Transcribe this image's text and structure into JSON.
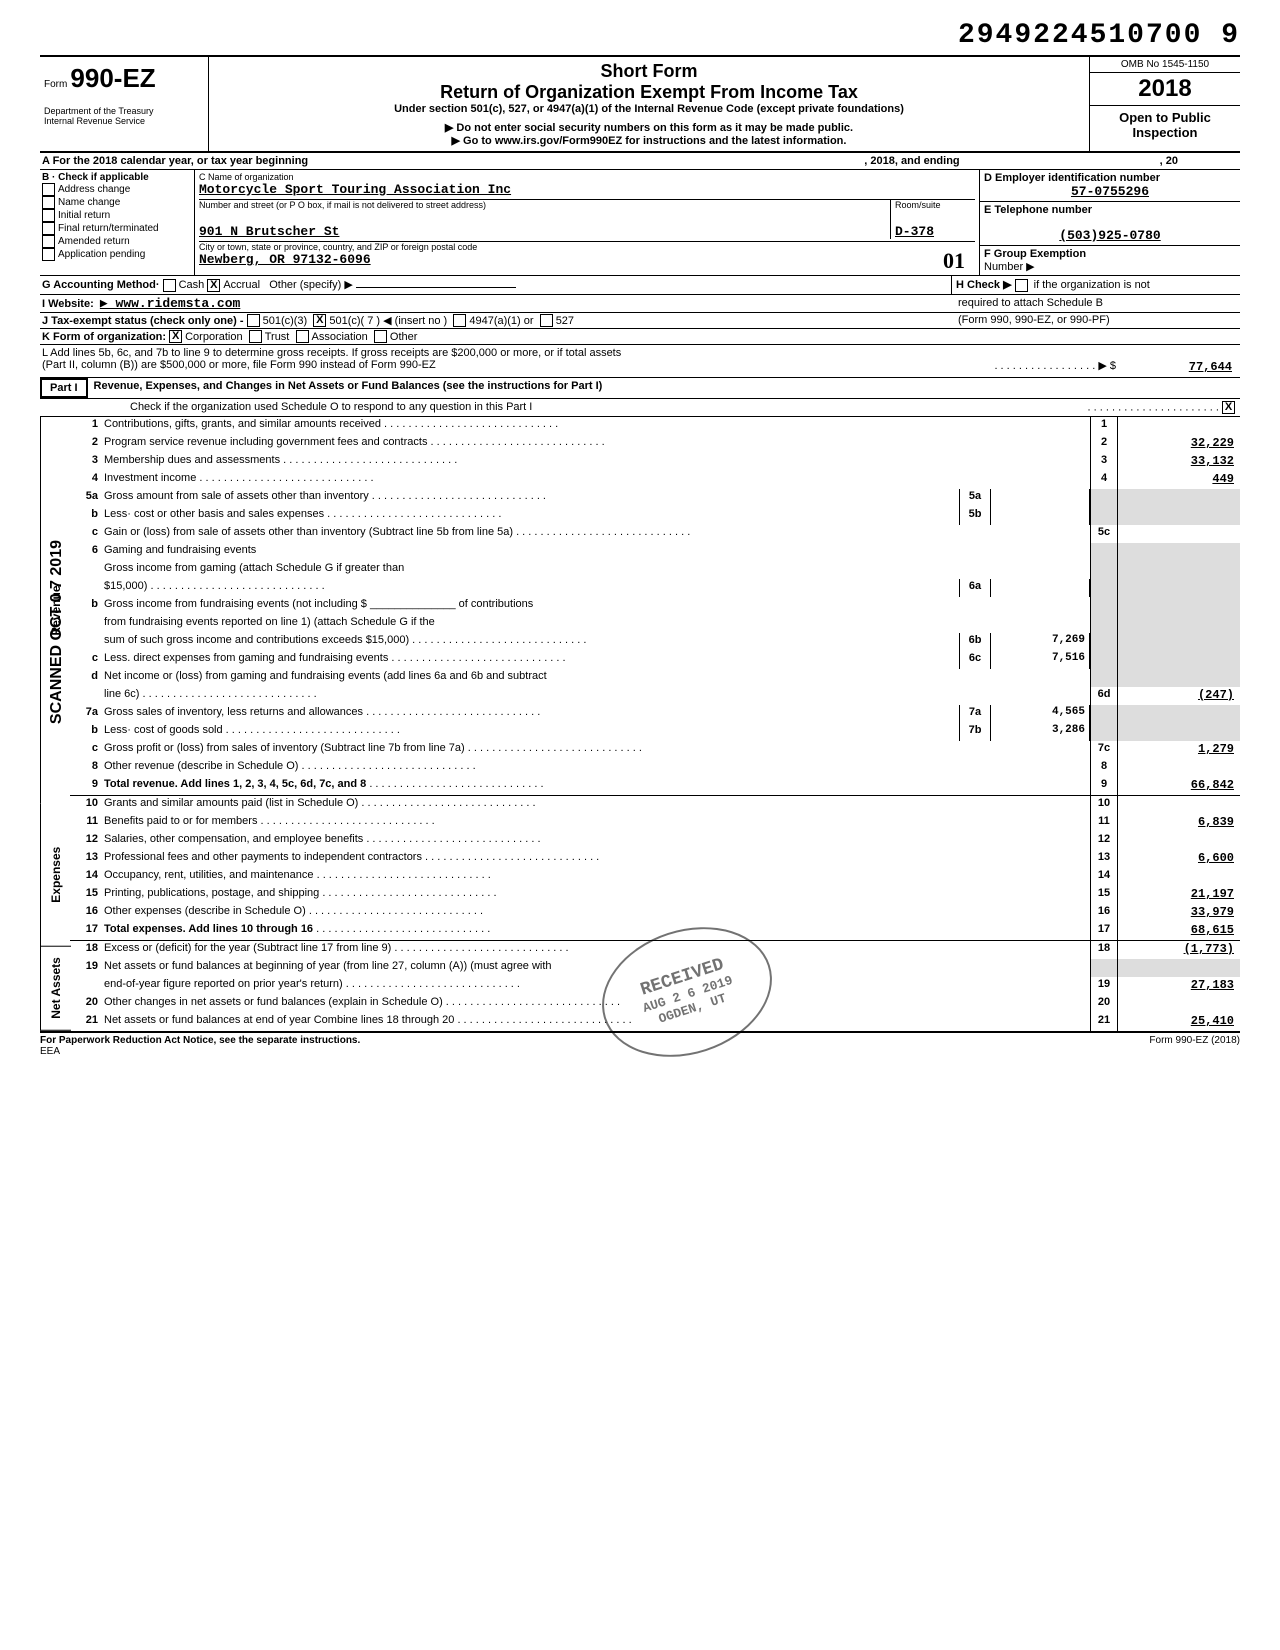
{
  "document_number": "29492245107009",
  "document_number_spaced": "2949224510700 9",
  "header": {
    "form_label": "Form",
    "form_number": "990-EZ",
    "dept1": "Department of the Treasury",
    "dept2": "Internal Revenue Service",
    "short_form": "Short Form",
    "title": "Return of Organization Exempt From Income Tax",
    "subtitle": "Under section 501(c), 527, or 4947(a)(1) of the Internal Revenue Code (except private foundations)",
    "note1": "▶  Do not enter social security numbers on this form as it may be made public.",
    "note2": "▶  Go to www.irs.gov/Form990EZ for instructions and the latest information.",
    "omb": "OMB No 1545-1150",
    "year": "2018",
    "open_public": "Open to Public",
    "inspection": "Inspection"
  },
  "row_a": {
    "label_left": "A  For the 2018 calendar year, or tax year beginning",
    "mid": ", 2018, and ending",
    "right": ", 20"
  },
  "b": {
    "title": "B · Check if applicable",
    "opts": [
      "Address change",
      "Name change",
      "Initial return",
      "Final return/terminated",
      "Amended return",
      "Application pending"
    ]
  },
  "c": {
    "label": "C  Name of organization",
    "org": "Motorcycle Sport Touring Association Inc",
    "addr_label": "Number and street (or P O  box, if mail is not delivered to street address)",
    "room_label": "Room/suite",
    "street": "901 N Brutscher St",
    "room": "D-378",
    "city_label": "City or town, state or province, country, and ZIP or foreign postal code",
    "city": "Newberg, OR 97132-6096",
    "hand": "01"
  },
  "d": {
    "label": "D  Employer identification number",
    "value": "57-0755296"
  },
  "e": {
    "label": "E  Telephone number",
    "value": "(503)925-0780"
  },
  "f": {
    "label": "F  Group Exemption",
    "sub": "Number  ▶"
  },
  "g": {
    "label": "G  Accounting Method·",
    "cash": "Cash",
    "accrual": "Accrual",
    "other": "Other (specify) ▶",
    "accrual_checked": true
  },
  "h": {
    "label": "H  Check ▶",
    "text": "if the organization is not",
    "text2": "required to attach Schedule B",
    "text3": "(Form 990, 990-EZ, or 990-PF)"
  },
  "i": {
    "label": "I   Website:",
    "value": "▶ www.ridemsta.com"
  },
  "j": {
    "label": "J  Tax-exempt status (check only one) -",
    "opt1": "501(c)(3)",
    "opt2": "501(c)( 7  ) ◀ (insert no )",
    "opt3": "4947(a)(1) or",
    "opt4": "527",
    "checked_501c7": true
  },
  "k": {
    "label": "K  Form of organization:",
    "corp": "Corporation",
    "trust": "Trust",
    "assoc": "Association",
    "other": "Other",
    "corp_checked": true
  },
  "l": {
    "text1": "L  Add lines 5b, 6c, and 7b to line 9 to determine gross receipts. If gross receipts are $200,000 or more, or if total assets",
    "text2": "(Part II, column (B)) are $500,000 or more, file Form 990 instead of Form 990-EZ",
    "arrow": "▶ $",
    "value": "77,644"
  },
  "part1": {
    "label": "Part I",
    "title": "Revenue, Expenses, and Changes in Net Assets or Fund Balances (see the instructions for Part I)",
    "check_text": "Check if the organization used Schedule O to respond to any question in this Part I",
    "checked": true
  },
  "sections": {
    "revenue": "Revenue",
    "expenses": "Expenses",
    "netassets": "Net Assets"
  },
  "lines": {
    "1": {
      "n": "1",
      "t": "Contributions, gifts, grants, and similar amounts received",
      "box": "1",
      "v": ""
    },
    "2": {
      "n": "2",
      "t": "Program service revenue including government fees and contracts",
      "box": "2",
      "v": "32,229"
    },
    "3": {
      "n": "3",
      "t": "Membership dues and assessments",
      "box": "3",
      "v": "33,132"
    },
    "4": {
      "n": "4",
      "t": "Investment income",
      "box": "4",
      "v": "449"
    },
    "5a": {
      "n": "5a",
      "t": "Gross amount from sale of assets other than inventory",
      "mb": "5a",
      "mv": ""
    },
    "5b": {
      "n": "b",
      "t": "Less· cost or other basis and sales expenses",
      "mb": "5b",
      "mv": ""
    },
    "5c": {
      "n": "c",
      "t": "Gain or (loss) from sale of assets other than inventory (Subtract line 5b from line 5a)",
      "box": "5c",
      "v": ""
    },
    "6": {
      "n": "6",
      "t": "Gaming and fundraising events"
    },
    "6a": {
      "n": "a",
      "t": "Gross income from gaming (attach Schedule G if greater than",
      "t2": "$15,000)",
      "mb": "6a",
      "mv": ""
    },
    "6b": {
      "n": "b",
      "t": "Gross income from fundraising events (not including    $",
      "t2": "of contributions",
      "t3": "from fundraising events reported on line 1) (attach Schedule G if the",
      "t4": "sum of such gross income and contributions exceeds $15,000)",
      "mb": "6b",
      "mv": "7,269"
    },
    "6c": {
      "n": "c",
      "t": "Less. direct expenses from gaming and fundraising events",
      "mb": "6c",
      "mv": "7,516"
    },
    "6d": {
      "n": "d",
      "t": "Net income or (loss) from gaming and fundraising events (add lines 6a and 6b and subtract",
      "t2": "line 6c)",
      "box": "6d",
      "v": "(247)"
    },
    "7a": {
      "n": "7a",
      "t": "Gross sales of inventory, less returns and allowances",
      "mb": "7a",
      "mv": "4,565"
    },
    "7b": {
      "n": "b",
      "t": "Less· cost of goods sold",
      "mb": "7b",
      "mv": "3,286"
    },
    "7c": {
      "n": "c",
      "t": "Gross profit or (loss) from sales of inventory (Subtract line 7b from line 7a)",
      "box": "7c",
      "v": "1,279"
    },
    "8": {
      "n": "8",
      "t": "Other revenue (describe in Schedule O)",
      "box": "8",
      "v": ""
    },
    "9": {
      "n": "9",
      "t": "Total revenue.  Add lines 1, 2, 3, 4, 5c, 6d, 7c, and 8",
      "box": "9",
      "v": "66,842",
      "bold": true
    },
    "10": {
      "n": "10",
      "t": "Grants and similar amounts paid (list in Schedule O)",
      "box": "10",
      "v": ""
    },
    "11": {
      "n": "11",
      "t": "Benefits paid to or for members",
      "box": "11",
      "v": "6,839"
    },
    "12": {
      "n": "12",
      "t": "Salaries, other compensation, and employee benefits",
      "box": "12",
      "v": ""
    },
    "13": {
      "n": "13",
      "t": "Professional fees and other payments to independent contractors",
      "box": "13",
      "v": "6,600"
    },
    "14": {
      "n": "14",
      "t": "Occupancy, rent, utilities, and maintenance",
      "box": "14",
      "v": ""
    },
    "15": {
      "n": "15",
      "t": "Printing, publications, postage, and shipping",
      "box": "15",
      "v": "21,197"
    },
    "16": {
      "n": "16",
      "t": "Other expenses (describe in Schedule O)",
      "box": "16",
      "v": "33,979"
    },
    "17": {
      "n": "17",
      "t": "Total expenses.  Add lines 10 through 16",
      "box": "17",
      "v": "68,615",
      "bold": true
    },
    "18": {
      "n": "18",
      "t": "Excess or (deficit) for the year (Subtract line 17 from line 9)",
      "box": "18",
      "v": "(1,773)"
    },
    "19": {
      "n": "19",
      "t": "Net assets or fund balances at beginning of year (from line 27, column (A)) (must agree with",
      "t2": "end-of-year figure reported on prior year's return)",
      "box": "19",
      "v": "27,183"
    },
    "20": {
      "n": "20",
      "t": "Other changes in net assets or fund balances (explain in Schedule O)",
      "box": "20",
      "v": ""
    },
    "21": {
      "n": "21",
      "t": "Net assets or fund balances at end of year  Combine lines 18 through 20",
      "box": "21",
      "v": "25,410"
    }
  },
  "footer": {
    "left": "For Paperwork Reduction Act Notice, see the separate instructions.",
    "eea": "EEA",
    "right": "Form 990-EZ (2018)"
  },
  "side_stamp": "SCANNED OCT 0 7 2019",
  "side_hand": "D. 990-T",
  "received_stamp": {
    "l1": "RECEIVED",
    "l2": "AUG 2 6 2019",
    "l3": "OGDEN, UT"
  }
}
